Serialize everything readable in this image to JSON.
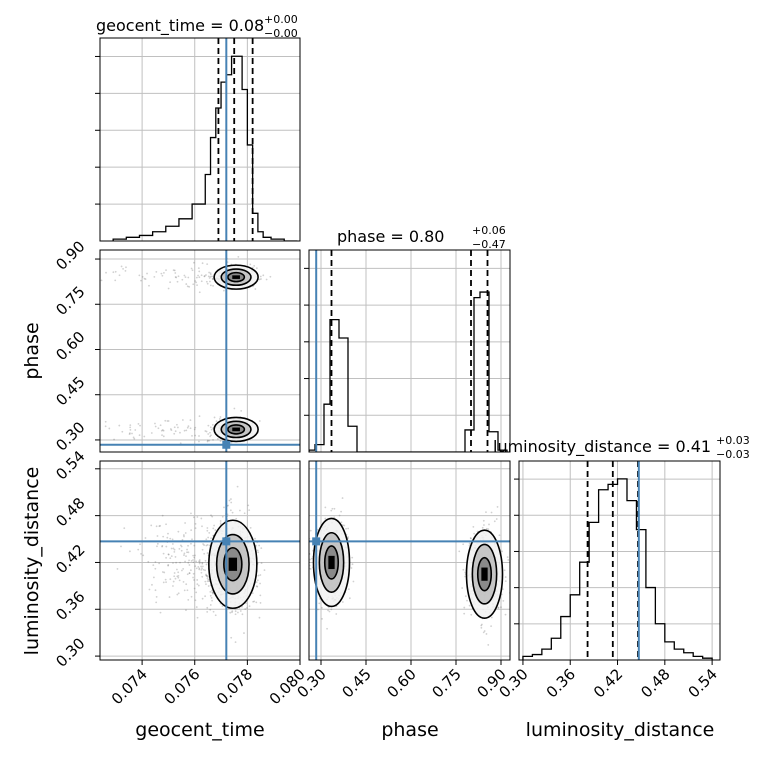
{
  "colors": {
    "truth": "#4682b4",
    "hist": "#000000",
    "grid": "#c0c0c0",
    "scatter": "#5a5a5a",
    "contour_fill_outer": "#f2f2f2",
    "contour_fill_mid": "#bdbdbd",
    "contour_fill_inner": "#7f7f7f",
    "contour_fill_core": "#000000"
  },
  "parameters": [
    "geocent_time",
    "phase",
    "luminosity_distance"
  ],
  "titles": [
    {
      "main": "geocent_time = 0.08",
      "sup": "+0.00",
      "sub": "−0.00"
    },
    {
      "main": "phase = 0.80",
      "sup": "+0.06",
      "sub": "−0.47"
    },
    {
      "main": "luminosity_distance = 0.41",
      "sup": "+0.03",
      "sub": "−0.03"
    }
  ],
  "axis_labels": {
    "x": [
      "geocent_time",
      "phase",
      "luminosity_distance"
    ],
    "y": [
      "phase",
      "luminosity_distance"
    ]
  },
  "ticks": {
    "geocent_time": [
      "0.074",
      "0.076",
      "0.078",
      "0.080"
    ],
    "phase": [
      "0.30",
      "0.45",
      "0.60",
      "0.75",
      "0.90"
    ],
    "luminosity_distance": [
      "0.30",
      "0.36",
      "0.42",
      "0.48",
      "0.54"
    ]
  },
  "chart_data": {
    "type": "corner",
    "truths": {
      "geocent_time": 0.0772,
      "phase": 0.284,
      "luminosity_distance": 0.447
    },
    "ranges": {
      "geocent_time": [
        0.0724,
        0.08
      ],
      "phase": [
        0.26,
        0.93
      ],
      "luminosity_distance": [
        0.295,
        0.55
      ]
    },
    "quantiles": {
      "geocent_time": [
        0.0769,
        0.0775,
        0.0782
      ],
      "phase": [
        0.335,
        0.8,
        0.855
      ],
      "luminosity_distance": [
        0.382,
        0.414,
        0.446
      ]
    },
    "histograms": {
      "geocent_time": {
        "edges": [
          0.0729,
          0.0734,
          0.0739,
          0.0744,
          0.0749,
          0.0754,
          0.0759,
          0.0764,
          0.0766,
          0.0768,
          0.077,
          0.0772,
          0.0774,
          0.0776,
          0.0778,
          0.078,
          0.0782,
          0.0784,
          0.0786,
          0.0789,
          0.0794,
          0.0799
        ],
        "counts": [
          0.01,
          0.02,
          0.03,
          0.05,
          0.08,
          0.12,
          0.2,
          0.36,
          0.56,
          0.72,
          0.86,
          0.9,
          1.0,
          1.0,
          0.82,
          0.52,
          0.15,
          0.05,
          0.02,
          0.01,
          0.0
        ]
      },
      "phase": {
        "edges": [
          0.26,
          0.28,
          0.31,
          0.33,
          0.36,
          0.39,
          0.42,
          0.78,
          0.81,
          0.83,
          0.86,
          0.89,
          0.92
        ],
        "counts": [
          0.01,
          0.04,
          0.26,
          0.72,
          0.62,
          0.14,
          0.0,
          0.12,
          0.84,
          0.87,
          0.11,
          0.01
        ]
      },
      "luminosity_distance": {
        "edges": [
          0.3,
          0.312,
          0.324,
          0.336,
          0.348,
          0.36,
          0.372,
          0.384,
          0.396,
          0.408,
          0.42,
          0.432,
          0.444,
          0.456,
          0.468,
          0.48,
          0.492,
          0.504,
          0.516,
          0.528,
          0.54
        ],
        "counts": [
          0.02,
          0.03,
          0.06,
          0.12,
          0.24,
          0.36,
          0.54,
          0.76,
          0.94,
          0.97,
          1.0,
          0.88,
          0.72,
          0.4,
          0.2,
          0.1,
          0.06,
          0.04,
          0.02,
          0.01
        ]
      }
    },
    "modes_2d": {
      "phase_vs_geocent_time": [
        {
          "x": 0.0778,
          "y": 0.84
        },
        {
          "x": 0.0778,
          "y": 0.335
        }
      ],
      "luminosity_distance_vs_geocent_time": [
        {
          "x": 0.0776,
          "y": 0.41
        }
      ],
      "luminosity_distance_vs_phase": [
        {
          "x": 0.335,
          "y": 0.42
        },
        {
          "x": 0.845,
          "y": 0.405
        }
      ]
    }
  }
}
